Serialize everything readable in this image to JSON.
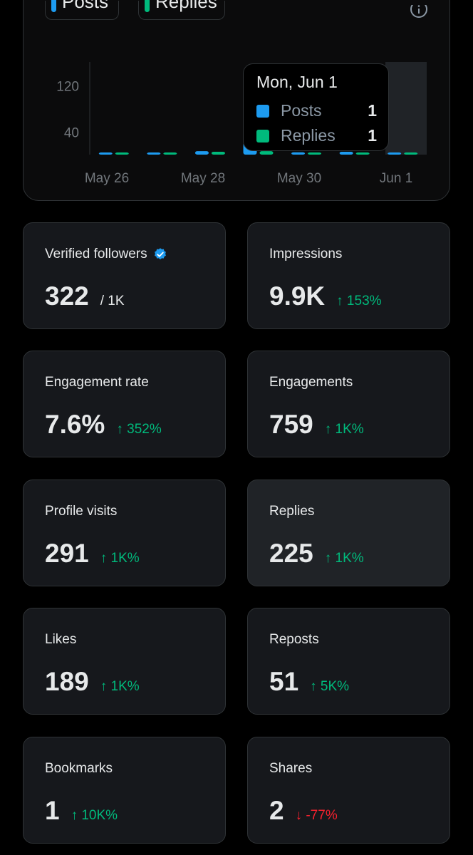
{
  "chart": {
    "legend": [
      {
        "label": "Posts",
        "color": "#1d9bf0"
      },
      {
        "label": "Replies",
        "color": "#00ba7c"
      }
    ],
    "tooltip": {
      "title": "Mon, Jun 1",
      "rows": [
        {
          "label": "Posts",
          "value": "1",
          "color": "#1d9bf0"
        },
        {
          "label": "Replies",
          "value": "1",
          "color": "#00ba7c"
        }
      ]
    }
  },
  "chart_data": {
    "type": "bar",
    "x_ticks": [
      "May 26",
      "May 28",
      "May 30",
      "Jun 1"
    ],
    "y_ticks": [
      "120",
      "40"
    ],
    "categories": [
      "May 26",
      "May 27",
      "May 28",
      "May 29",
      "May 30",
      "May 31",
      "Jun 1"
    ],
    "series": [
      {
        "name": "Posts",
        "color": "#1d9bf0",
        "values": [
          1,
          3,
          6,
          22,
          4,
          5,
          1
        ]
      },
      {
        "name": "Replies",
        "color": "#00ba7c",
        "values": [
          1,
          2,
          5,
          6,
          3,
          3,
          1
        ]
      }
    ],
    "ylim": [
      0,
      160
    ]
  },
  "stats": [
    {
      "label": "Verified followers",
      "value": "322",
      "suffix": "/ 1K",
      "verified": true
    },
    {
      "label": "Impressions",
      "value": "9.9K",
      "delta": "↑ 153%",
      "dir": "up"
    },
    {
      "label": "Engagement rate",
      "value": "7.6%",
      "delta": "↑ 352%",
      "dir": "up"
    },
    {
      "label": "Engagements",
      "value": "759",
      "delta": "↑ 1K%",
      "dir": "up"
    },
    {
      "label": "Profile visits",
      "value": "291",
      "delta": "↑ 1K%",
      "dir": "up"
    },
    {
      "label": "Replies",
      "value": "225",
      "delta": "↑ 1K%",
      "dir": "up",
      "highlight": true
    },
    {
      "label": "Likes",
      "value": "189",
      "delta": "↑ 1K%",
      "dir": "up"
    },
    {
      "label": "Reposts",
      "value": "51",
      "delta": "↑ 5K%",
      "dir": "up"
    },
    {
      "label": "Bookmarks",
      "value": "1",
      "delta": "↑ 10K%",
      "dir": "up"
    },
    {
      "label": "Shares",
      "value": "2",
      "delta": "↓ -77%",
      "dir": "down"
    }
  ]
}
